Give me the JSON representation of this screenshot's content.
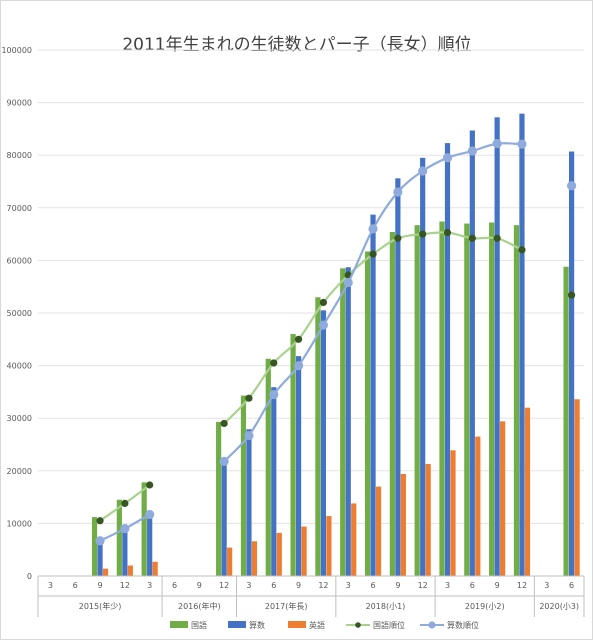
{
  "chart_data": {
    "type": "bar",
    "title": "2011年生まれの生徒数とパー子（長女）順位",
    "xlabel": "",
    "ylabel": "",
    "ylim": [
      0,
      100000
    ],
    "y_ticks": [
      "0",
      "10000",
      "20000",
      "30000",
      "40000",
      "50000",
      "60000",
      "70000",
      "80000",
      "90000",
      "100000"
    ],
    "grid": true,
    "legend_position": "bottom",
    "groups": [
      {
        "label": "2015(年少)",
        "months": [
          "3",
          "6",
          "9",
          "12",
          "3"
        ]
      },
      {
        "label": "2016(年中)",
        "months": [
          "6",
          "9",
          "12"
        ]
      },
      {
        "label": "2017(年長)",
        "months": [
          "3",
          "6",
          "9",
          "12"
        ]
      },
      {
        "label": "2018(小1)",
        "months": [
          "3",
          "6",
          "9",
          "12"
        ]
      },
      {
        "label": "2019(小2)",
        "months": [
          "3",
          "6",
          "9",
          "12"
        ]
      },
      {
        "label": "2020(小3)",
        "months": [
          "3",
          "6"
        ]
      }
    ],
    "categories": [
      "2015/3",
      "2015/6",
      "2015/9",
      "2015/12",
      "2016/3",
      "2016/6",
      "2016/9",
      "2016/12",
      "2017/3",
      "2017/6",
      "2017/9",
      "2017/12",
      "2018/3",
      "2018/6",
      "2018/9",
      "2018/12",
      "2019/3",
      "2019/6",
      "2019/9",
      "2019/12",
      "2020/3",
      "2020/6"
    ],
    "series": [
      {
        "name": "国語",
        "kind": "bar",
        "color": "#70ad47",
        "values": [
          null,
          null,
          11200,
          14500,
          17800,
          null,
          null,
          29300,
          34300,
          41300,
          46000,
          53000,
          58500,
          61700,
          65400,
          66700,
          67400,
          67000,
          67200,
          66700,
          null,
          58800
        ]
      },
      {
        "name": "算数",
        "kind": "bar",
        "color": "#4472c4",
        "values": [
          null,
          null,
          6500,
          8800,
          12000,
          null,
          null,
          21800,
          27900,
          35900,
          41800,
          50500,
          58700,
          68700,
          75600,
          79500,
          82300,
          84700,
          87200,
          87900,
          null,
          80700
        ]
      },
      {
        "name": "英語",
        "kind": "bar",
        "color": "#ed7d31",
        "values": [
          null,
          null,
          1400,
          2000,
          2700,
          null,
          null,
          5400,
          6600,
          8200,
          9400,
          11400,
          13800,
          17000,
          19400,
          21300,
          23900,
          26500,
          29400,
          32000,
          null,
          33600
        ]
      },
      {
        "name": "国語順位",
        "kind": "line",
        "color": "#a9d18e",
        "marker_color": "#375623",
        "values": [
          null,
          null,
          10500,
          13800,
          17300,
          null,
          null,
          29000,
          33800,
          40500,
          45000,
          52000,
          57200,
          61200,
          64200,
          65000,
          65300,
          64200,
          64200,
          62000,
          null,
          53400
        ]
      },
      {
        "name": "算数順位",
        "kind": "line",
        "color": "#8faadc",
        "marker_color": "#8faadc",
        "values": [
          null,
          null,
          6700,
          9000,
          11700,
          null,
          null,
          21800,
          26700,
          34500,
          40000,
          47700,
          55800,
          66000,
          73000,
          77000,
          79500,
          80800,
          82200,
          82100,
          null,
          74200
        ]
      }
    ]
  }
}
